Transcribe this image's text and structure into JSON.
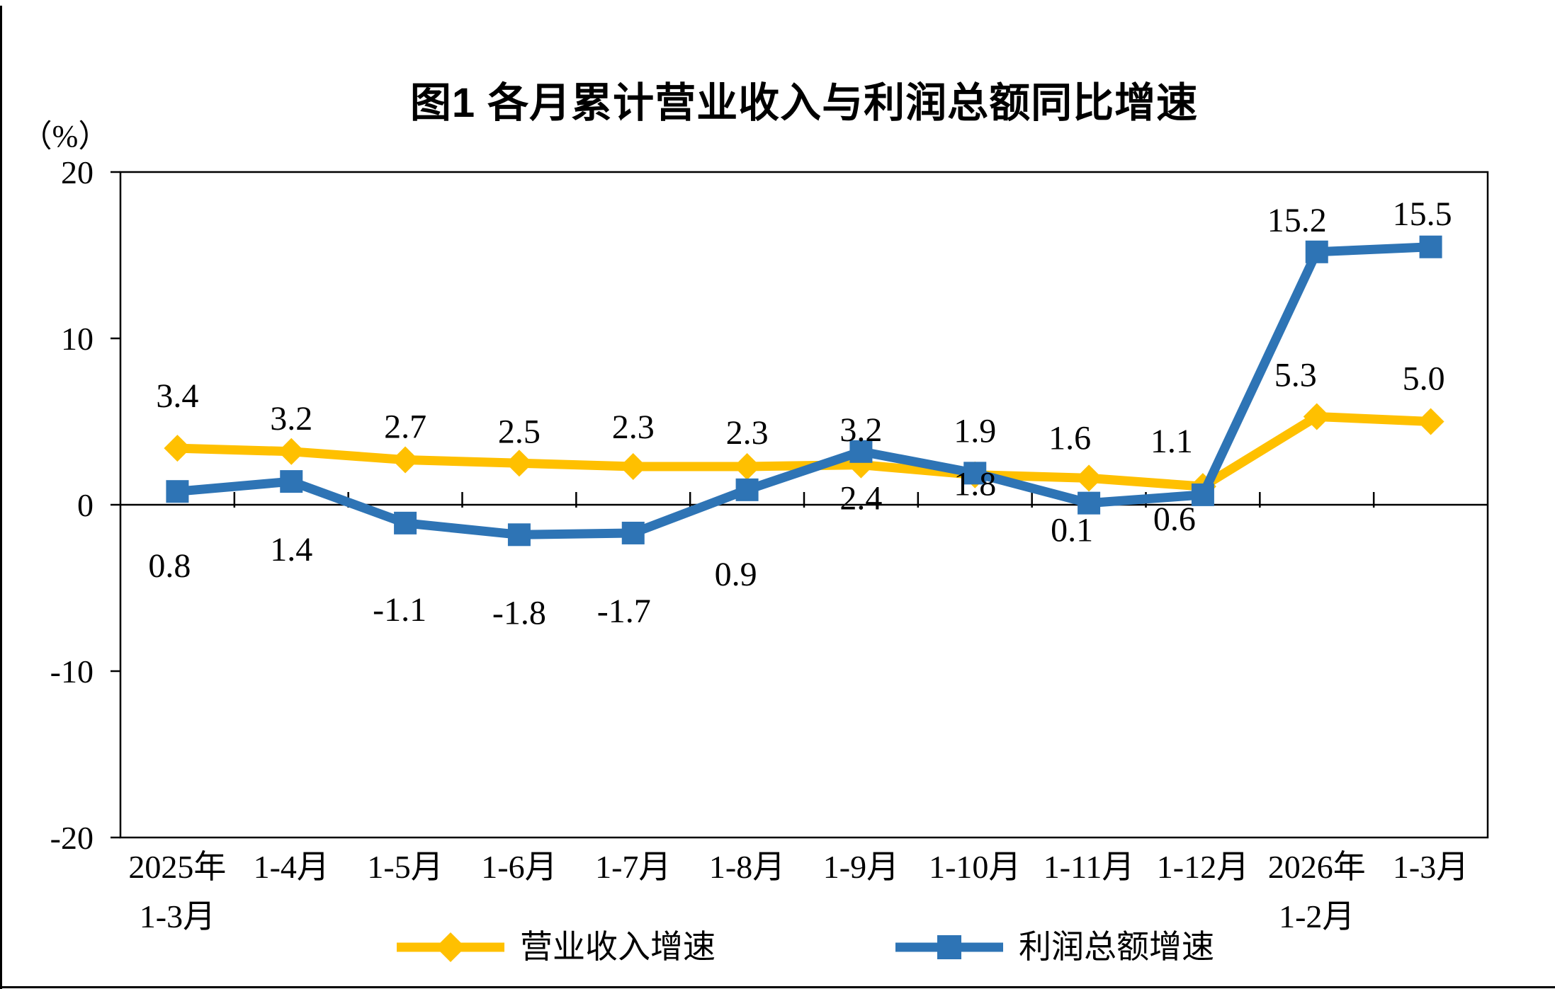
{
  "page": {
    "background": "#FFFFFF",
    "frame_color": "#000000"
  },
  "title": "图1  各月累计营业收入与利润总额同比增速",
  "y_axis": {
    "unit_label": "（%）",
    "tick_labels": [
      "20",
      "10",
      "0",
      "-10",
      "-20"
    ],
    "tick_values": [
      20,
      10,
      0,
      -10,
      -20
    ]
  },
  "chart_data": {
    "type": "line",
    "title": "图1  各月累计营业收入与利润总额同比增速",
    "ylabel": "（%）",
    "ylim": [
      -20,
      20
    ],
    "yticks": [
      20,
      10,
      0,
      -10,
      -20
    ],
    "grid": false,
    "legend_position": "bottom",
    "categories": [
      [
        "2025年",
        "1-3月"
      ],
      [
        "1-4月"
      ],
      [
        "1-5月"
      ],
      [
        "1-6月"
      ],
      [
        "1-7月"
      ],
      [
        "1-8月"
      ],
      [
        "1-9月"
      ],
      [
        "1-10月"
      ],
      [
        "1-11月"
      ],
      [
        "1-12月"
      ],
      [
        "2026年",
        "1-2月"
      ],
      [
        "1-3月"
      ]
    ],
    "series": [
      {
        "name": "营业收入增速",
        "color": "#FFC000",
        "marker": "diamond",
        "values": [
          3.4,
          3.2,
          2.7,
          2.5,
          2.3,
          2.3,
          2.4,
          1.8,
          1.6,
          1.1,
          5.3,
          5.0
        ],
        "label_dx": [
          0,
          0,
          0,
          0,
          0,
          0,
          0,
          0,
          -27,
          -44,
          -30,
          -10
        ],
        "label_dy": [
          -58,
          -31,
          -31,
          -29,
          -40,
          -32,
          63,
          29,
          -41,
          -48,
          -43,
          -45
        ]
      },
      {
        "name": "利润总额增速",
        "color": "#2E74B5",
        "marker": "square",
        "values": [
          0.8,
          1.4,
          -1.1,
          -1.8,
          -1.7,
          0.9,
          3.2,
          1.9,
          0.1,
          0.6,
          15.2,
          15.5
        ],
        "label_dx": [
          -11,
          0,
          -8,
          0,
          -13,
          -16,
          0,
          0,
          -24,
          -40,
          -28,
          -12
        ],
        "label_dy": [
          121,
          112,
          138,
          126,
          126,
          135,
          -15,
          -44,
          54,
          50,
          -29,
          -31
        ]
      }
    ]
  },
  "legend": {
    "items": [
      {
        "label": "营业收入增速",
        "color": "#FFC000",
        "marker": "diamond"
      },
      {
        "label": "利润总额增速",
        "color": "#2E74B5",
        "marker": "square"
      }
    ]
  }
}
